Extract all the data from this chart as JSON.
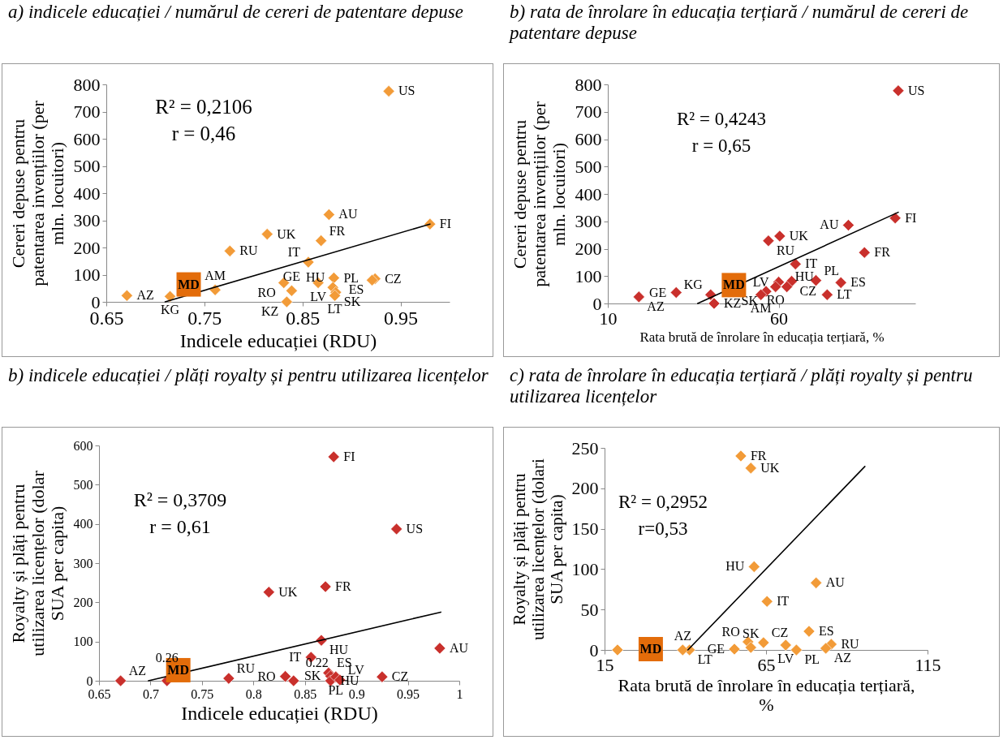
{
  "chart_data": [
    {
      "type": "scatter",
      "title": "a) indicele educației / numărul de cereri de patentare depuse",
      "xlabel": "Indicele educației (RDU)",
      "ylabel": "Cereri  depuse pentru patentarea invențiilor (per mln. locuitori)",
      "xlim": [
        0.65,
        1.0
      ],
      "xticks": [
        0.65,
        0.75,
        0.85,
        0.95
      ],
      "ylim": [
        0,
        800
      ],
      "yticks": [
        0,
        100,
        200,
        300,
        400,
        500,
        600,
        700,
        800
      ],
      "marker": "diamond",
      "annotations": [
        "R² = 0,2106",
        "r = 0,46"
      ],
      "series": [
        {
          "color": "#f29b38",
          "x": [
            0.938,
            0.877,
            0.98,
            0.814,
            0.869,
            0.776,
            0.856,
            0.882,
            0.924,
            0.921,
            0.866,
            0.831,
            0.881,
            0.839,
            0.884,
            0.883,
            0.834,
            0.671,
            0.715,
            0.761
          ],
          "values": [
            775,
            321,
            286,
            249,
            225,
            187,
            146,
            88,
            85,
            80,
            70,
            70,
            53,
            41,
            35,
            23,
            0,
            23,
            20,
            44
          ],
          "value_labels": [
            "US",
            "AU",
            "FI",
            "UK",
            "FR",
            "RU",
            "IT",
            "PL",
            "CZ",
            "ES",
            "LV",
            "RO",
            "HU",
            "GE",
            "SK",
            "LT",
            "KZ",
            "AZ",
            "KG",
            "AM"
          ]
        },
        {
          "type": "line",
          "color": "#000000",
          "marker": "none",
          "x": [
            0.71,
            0.98
          ],
          "values": [
            0,
            286
          ]
        },
        {
          "color": "#e36c0a",
          "marker": "square",
          "x": [
            0.734
          ],
          "values": [
            64
          ],
          "value_labels": [
            "MD"
          ]
        }
      ]
    },
    {
      "type": "scatter",
      "title": "b) rata de înrolare în educația terțiară / numărul de cereri de patentare depuse",
      "xlabel": "Rata brută de înrolare în educația terțiară, %",
      "ylabel": "Cereri  depuse pentru patentarea invențiilor (per mln. locuitori)",
      "xlim": [
        10,
        100
      ],
      "xticks": [
        10,
        60
      ],
      "ylim": [
        0,
        800
      ],
      "yticks": [
        0,
        100,
        200,
        300,
        400,
        500,
        600,
        700,
        800
      ],
      "marker": "diamond",
      "annotations": [
        "R² = 0,4243",
        "r = 0,65"
      ],
      "series": [
        {
          "color": "#c9302c",
          "x": [
            95.0,
            94.1,
            80.4,
            60.3,
            57.0,
            85.1,
            64.9,
            63.8,
            60.0,
            59.1,
            62.4,
            70.9,
            78.2,
            74.2,
            56.3,
            54.8,
            40.1,
            41.1,
            30.0,
            19.1
          ],
          "values": [
            777,
            312,
            286,
            246,
            229,
            186,
            144,
            81,
            78,
            61,
            61,
            84,
            76,
            32,
            44,
            32,
            32,
            0,
            40,
            24
          ],
          "value_labels": [
            "US",
            "FI",
            "AU",
            "UK",
            "RU",
            "FR",
            "IT",
            "CZ",
            "LV",
            "RO",
            "HU",
            "PL",
            "ES",
            "LT",
            "SK",
            "AM",
            "KG",
            "KZ",
            "GE",
            "AZ"
          ]
        },
        {
          "type": "line",
          "color": "#000000",
          "marker": "none",
          "x": [
            36.3,
            95
          ],
          "values": [
            0,
            333
          ]
        },
        {
          "color": "#e36c0a",
          "marker": "square",
          "x": [
            46.9
          ],
          "values": [
            67
          ],
          "value_labels": [
            "MD"
          ]
        }
      ]
    },
    {
      "type": "scatter",
      "title": "b) indicele educației / plăți royalty și pentru utilizarea licențelor",
      "xlabel": "Indicele educației (RDU)",
      "ylabel": "Royalty și plăți pentru utilizarea licențelor (dolar SUA per capita)",
      "xlim": [
        0.65,
        1.0
      ],
      "xticks": [
        0.65,
        0.7,
        0.75,
        0.8,
        0.85,
        0.9,
        0.95,
        1
      ],
      "ylim": [
        0,
        600
      ],
      "yticks": [
        0,
        100,
        200,
        300,
        400,
        500,
        600
      ],
      "marker": "diamond",
      "annotations": [
        "R² = 0,3709",
        "r = 0,61",
        {
          "text": "0.26",
          "x": 0.716,
          "y": 0
        },
        {
          "text": "0.22",
          "x": 0.884,
          "y": 0
        }
      ],
      "series": [
        {
          "color": "#c9302c",
          "x": [
            0.878,
            0.939,
            0.87,
            0.815,
            0.866,
            0.981,
            0.856,
            0.873,
            0.875,
            0.875,
            0.88,
            0.884,
            0.925,
            0.831,
            0.839,
            0.776,
            0.671,
            0.716
          ],
          "values": [
            571,
            387,
            240,
            226,
            103,
            83,
            60,
            20,
            12,
            0,
            10,
            2,
            10,
            11,
            0,
            6,
            0,
            0
          ],
          "value_labels": [
            "FI",
            "US",
            "FR",
            "UK",
            "HU",
            "AU",
            "IT",
            "ES",
            "SK",
            "HU",
            "PL",
            "LV",
            "CZ",
            "RO",
            null,
            "RU",
            "AZ",
            null
          ]
        },
        {
          "type": "line",
          "color": "#000000",
          "marker": "none",
          "x": [
            0.698,
            0.982
          ],
          "values": [
            0,
            175
          ]
        },
        {
          "color": "#e36c0a",
          "marker": "square",
          "x": [
            0.727
          ],
          "values": [
            27
          ],
          "value_labels": [
            "MD"
          ]
        }
      ]
    },
    {
      "type": "scatter",
      "title": "c) rata de înrolare în educația terțiară / plăți royalty și pentru utilizarea licențelor",
      "xlabel": "Rata brută de înrolare în educația terțiară, %",
      "ylabel": "Royalty și plăți pentru utilizarea licențelor (dolari SUA per capita)",
      "xlim": [
        15,
        115
      ],
      "xticks": [
        15,
        65,
        115
      ],
      "ylim": [
        0,
        250
      ],
      "yticks": [
        0,
        50,
        100,
        150,
        200,
        250
      ],
      "marker": "diamond",
      "annotations": [
        "R² = 0,2952",
        "r=0,53"
      ],
      "series": [
        {
          "color": "#f29b38",
          "x": [
            57.2,
            60.3,
            61.3,
            80.5,
            65.3,
            78.3,
            59.4,
            60.3,
            64.2,
            71.1,
            74.4,
            85.2,
            83.5,
            55.2,
            41.3,
            39.2,
            19.0
          ],
          "values": [
            240,
            225,
            103,
            83,
            60,
            23,
            10,
            3,
            9,
            6,
            0,
            7,
            2,
            1,
            0,
            0,
            0
          ],
          "value_labels": [
            "FR",
            "UK",
            "HU",
            "AU",
            "IT",
            "ES",
            "RO",
            "SK",
            "CZ",
            "LV",
            "PL",
            "RU",
            "AZ",
            "GE",
            "LT",
            "AZ",
            null
          ]
        },
        {
          "type": "line",
          "color": "#000000",
          "marker": "none",
          "x": [
            40.8,
            95.6
          ],
          "values": [
            0,
            227
          ]
        },
        {
          "color": "#e36c0a",
          "marker": "square",
          "x": [
            29.3
          ],
          "values": [
            1
          ],
          "value_labels": [
            "MD"
          ]
        }
      ]
    }
  ]
}
